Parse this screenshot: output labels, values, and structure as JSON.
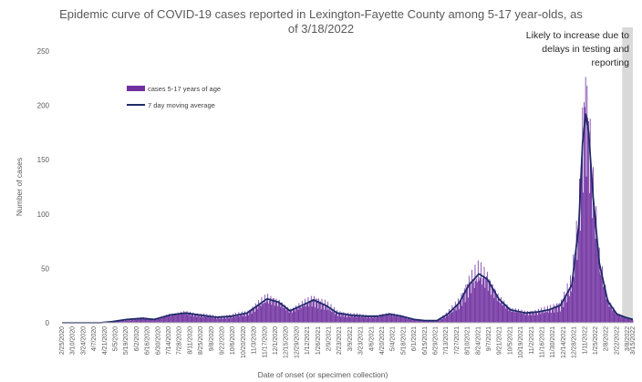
{
  "chart_data": {
    "type": "bar",
    "title": "Epidemic curve of COVID-19 cases reported in Lexington-Fayette County among 5-17 year-olds, as of 3/18/2022",
    "title_lines": [
      "Epidemic curve of COVID-19 cases reported in Lexington-Fayette County among 5-17 year-olds, as",
      "of 3/18/2022"
    ],
    "xlabel": "Date of onset (or specimen collection)",
    "ylabel": "Number of cases",
    "ylim": [
      0,
      250
    ],
    "yticks": [
      0,
      50,
      100,
      150,
      200,
      250
    ],
    "x_start": "2020-02-25",
    "x_end": "2022-03-15",
    "x_tick_labels": [
      "2/25/2020",
      "3/10/2020",
      "3/24/2020",
      "4/7/2020",
      "4/21/2020",
      "5/5/2020",
      "5/19/2020",
      "6/2/2020",
      "6/16/2020",
      "6/30/2020",
      "7/14/2020",
      "7/28/2020",
      "8/11/2020",
      "8/25/2020",
      "9/8/2020",
      "9/22/2020",
      "10/6/2020",
      "10/20/2020",
      "11/3/2020",
      "11/17/2020",
      "12/1/2020",
      "12/15/2020",
      "12/29/2020",
      "1/12/2021",
      "1/26/2021",
      "2/9/2021",
      "2/23/2021",
      "3/9/2021",
      "3/23/2021",
      "4/6/2021",
      "4/20/2021",
      "5/4/2021",
      "5/18/2021",
      "6/1/2021",
      "6/15/2021",
      "6/29/2021",
      "7/13/2021",
      "7/27/2021",
      "8/10/2021",
      "8/24/2021",
      "9/7/2021",
      "9/21/2021",
      "10/5/2021",
      "10/19/2021",
      "11/2/2021",
      "11/16/2021",
      "11/30/2021",
      "12/14/2021",
      "12/28/2021",
      "1/11/2022",
      "1/25/2022",
      "2/8/2022",
      "2/22/2022",
      "3/8/2022",
      "3/15/2022"
    ],
    "series": [
      {
        "name": "cases 5-17 years of age",
        "kind": "bar",
        "color": "#7030a0",
        "points": [
          [
            "2020-02-25",
            0
          ],
          [
            "2020-04-15",
            0
          ],
          [
            "2020-05-01",
            1
          ],
          [
            "2020-05-20",
            3
          ],
          [
            "2020-06-10",
            4
          ],
          [
            "2020-06-25",
            3
          ],
          [
            "2020-07-15",
            7
          ],
          [
            "2020-08-05",
            9
          ],
          [
            "2020-08-25",
            7
          ],
          [
            "2020-09-15",
            5
          ],
          [
            "2020-10-05",
            6
          ],
          [
            "2020-10-25",
            9
          ],
          [
            "2020-11-08",
            16
          ],
          [
            "2020-11-20",
            22
          ],
          [
            "2020-12-05",
            19
          ],
          [
            "2020-12-20",
            11
          ],
          [
            "2021-01-05",
            16
          ],
          [
            "2021-01-20",
            21
          ],
          [
            "2021-02-05",
            16
          ],
          [
            "2021-02-20",
            9
          ],
          [
            "2021-03-10",
            7
          ],
          [
            "2021-03-30",
            6
          ],
          [
            "2021-04-15",
            6
          ],
          [
            "2021-04-30",
            8
          ],
          [
            "2021-05-15",
            6
          ],
          [
            "2021-06-01",
            3
          ],
          [
            "2021-06-15",
            2
          ],
          [
            "2021-07-01",
            2
          ],
          [
            "2021-07-15",
            8
          ],
          [
            "2021-07-30",
            18
          ],
          [
            "2021-08-12",
            35
          ],
          [
            "2021-08-25",
            45
          ],
          [
            "2021-09-05",
            40
          ],
          [
            "2021-09-20",
            22
          ],
          [
            "2021-10-05",
            12
          ],
          [
            "2021-10-25",
            9
          ],
          [
            "2021-11-10",
            10
          ],
          [
            "2021-11-25",
            12
          ],
          [
            "2021-12-10",
            16
          ],
          [
            "2021-12-25",
            35
          ],
          [
            "2022-01-03",
            90
          ],
          [
            "2022-01-08",
            165
          ],
          [
            "2022-01-12",
            200
          ],
          [
            "2022-01-16",
            175
          ],
          [
            "2022-01-22",
            115
          ],
          [
            "2022-01-30",
            55
          ],
          [
            "2022-02-10",
            20
          ],
          [
            "2022-02-22",
            8
          ],
          [
            "2022-03-05",
            5
          ],
          [
            "2022-03-15",
            3
          ]
        ]
      },
      {
        "name": "7 day moving average",
        "kind": "line",
        "color": "#1f2a6b",
        "points": [
          [
            "2020-02-25",
            0
          ],
          [
            "2020-04-15",
            0
          ],
          [
            "2020-05-01",
            1
          ],
          [
            "2020-05-20",
            3
          ],
          [
            "2020-06-10",
            4
          ],
          [
            "2020-06-25",
            3
          ],
          [
            "2020-07-15",
            7
          ],
          [
            "2020-08-05",
            9
          ],
          [
            "2020-08-25",
            7
          ],
          [
            "2020-09-15",
            5
          ],
          [
            "2020-10-05",
            6
          ],
          [
            "2020-10-25",
            9
          ],
          [
            "2020-11-08",
            16
          ],
          [
            "2020-11-20",
            22
          ],
          [
            "2020-12-05",
            19
          ],
          [
            "2020-12-20",
            11
          ],
          [
            "2021-01-05",
            16
          ],
          [
            "2021-01-20",
            21
          ],
          [
            "2021-02-05",
            16
          ],
          [
            "2021-02-20",
            9
          ],
          [
            "2021-03-10",
            7
          ],
          [
            "2021-03-30",
            6
          ],
          [
            "2021-04-15",
            6
          ],
          [
            "2021-04-30",
            8
          ],
          [
            "2021-05-15",
            6
          ],
          [
            "2021-06-01",
            3
          ],
          [
            "2021-06-15",
            2
          ],
          [
            "2021-07-01",
            2
          ],
          [
            "2021-07-15",
            8
          ],
          [
            "2021-07-30",
            18
          ],
          [
            "2021-08-12",
            35
          ],
          [
            "2021-08-25",
            45
          ],
          [
            "2021-09-05",
            40
          ],
          [
            "2021-09-20",
            22
          ],
          [
            "2021-10-05",
            12
          ],
          [
            "2021-10-25",
            9
          ],
          [
            "2021-11-10",
            10
          ],
          [
            "2021-11-25",
            12
          ],
          [
            "2021-12-10",
            16
          ],
          [
            "2021-12-25",
            35
          ],
          [
            "2022-01-03",
            90
          ],
          [
            "2022-01-08",
            165
          ],
          [
            "2022-01-12",
            192
          ],
          [
            "2022-01-16",
            175
          ],
          [
            "2022-01-22",
            115
          ],
          [
            "2022-01-30",
            55
          ],
          [
            "2022-02-10",
            20
          ],
          [
            "2022-02-22",
            8
          ],
          [
            "2022-03-05",
            5
          ],
          [
            "2022-03-15",
            3
          ]
        ]
      }
    ],
    "shaded_region": {
      "start": "2022-03-01",
      "end": "2022-03-15",
      "color": "#d9d9d9"
    },
    "annotation": "Likely to increase due to delays in testing and reporting",
    "annotation_lines": [
      "Likely to increase due to",
      "delays in testing and",
      "reporting"
    ],
    "legend_position": "upper-left",
    "grid": false
  }
}
